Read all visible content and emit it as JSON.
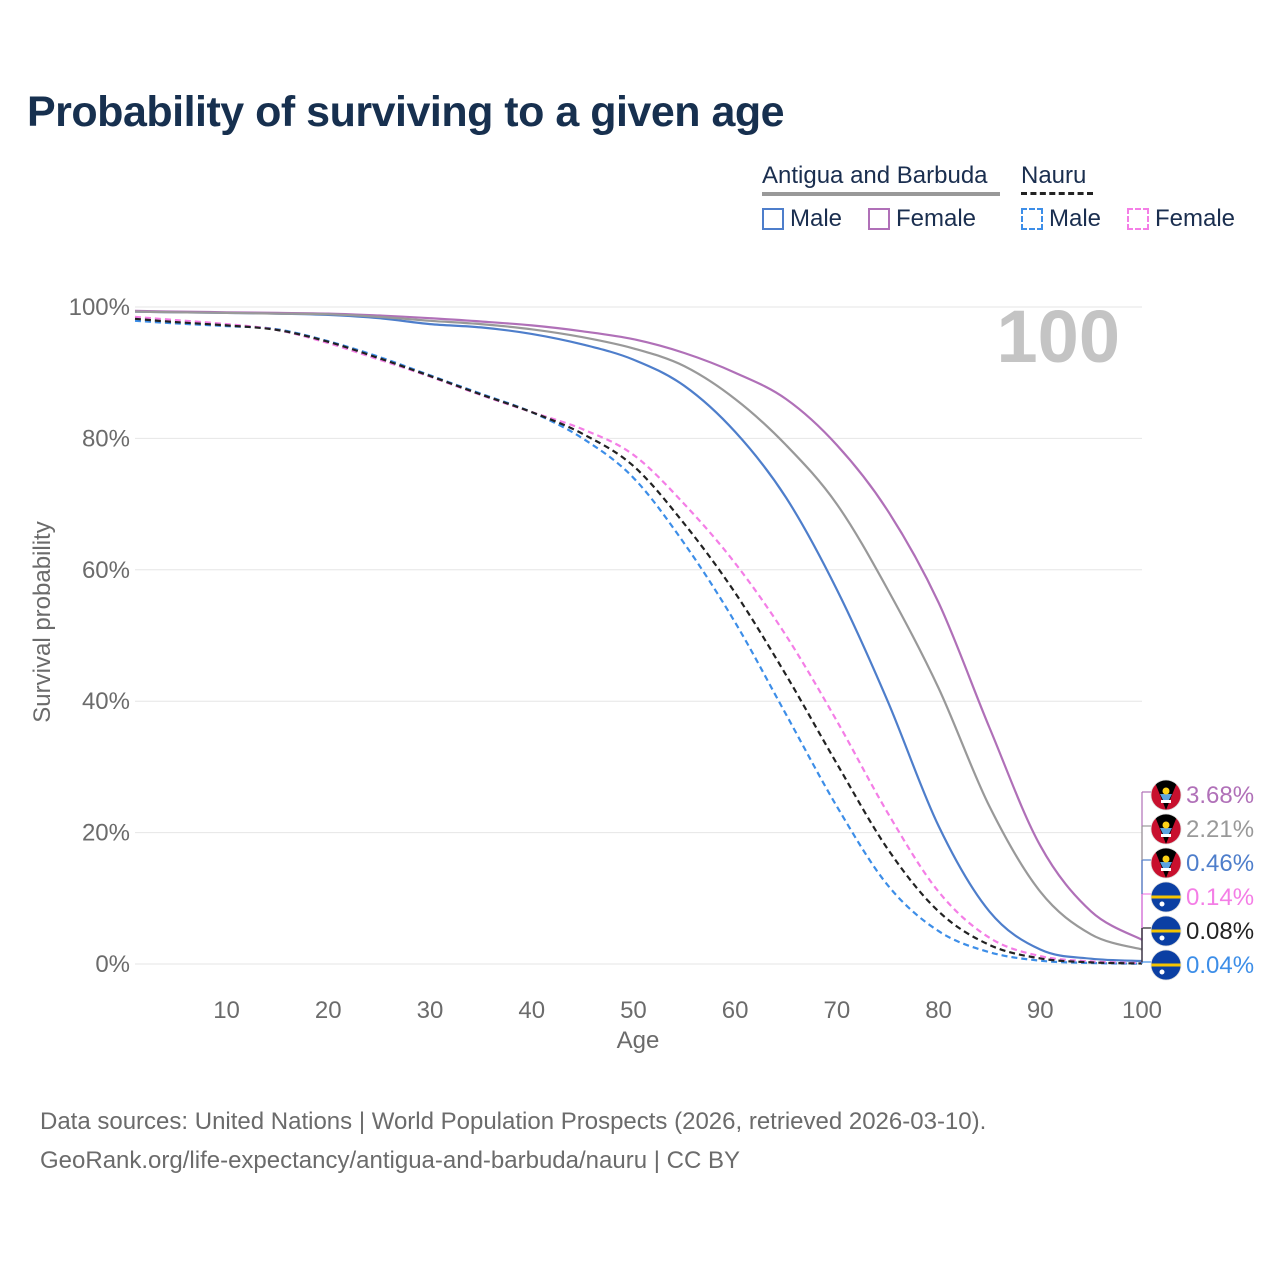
{
  "title": "Probability of surviving to a given age",
  "legend": {
    "country1": "Antigua and Barbuda",
    "country2": "Nauru",
    "items": [
      {
        "label": "Male",
        "color": "#4e7ecb",
        "dash": false
      },
      {
        "label": "Female",
        "color": "#b070b8",
        "dash": false
      },
      {
        "label": "Male",
        "color": "#3d8ee8",
        "dash": true
      },
      {
        "label": "Female",
        "color": "#f47ee6",
        "dash": true
      }
    ]
  },
  "year_label": "100",
  "source": {
    "line1": "Data sources: United Nations | World Population Prospects (2026, retrieved 2026-03-10).",
    "line2": "GeoRank.org/life-expectancy/antigua-and-barbuda/nauru | CC BY"
  },
  "chart_data": {
    "type": "line",
    "title": "Probability of surviving to a given age",
    "xlabel": "Age",
    "ylabel": "Survival probability",
    "xlim": [
      1,
      100
    ],
    "ylim": [
      0,
      100
    ],
    "xticks": [
      10,
      20,
      30,
      40,
      50,
      60,
      70,
      80,
      90,
      100
    ],
    "yticks": [
      {
        "value": 0,
        "label": "0%"
      },
      {
        "value": 20,
        "label": "20%"
      },
      {
        "value": 40,
        "label": "40%"
      },
      {
        "value": 60,
        "label": "60%"
      },
      {
        "value": 80,
        "label": "80%"
      },
      {
        "value": 100,
        "label": "100%"
      }
    ],
    "x": [
      1,
      5,
      10,
      15,
      20,
      25,
      30,
      35,
      40,
      45,
      50,
      55,
      60,
      65,
      70,
      75,
      80,
      85,
      90,
      95,
      100
    ],
    "series": [
      {
        "name": "Antigua and Barbuda Male",
        "color": "#4e7ecb",
        "dash": false,
        "values": [
          99.3,
          99.2,
          99.1,
          99.0,
          98.8,
          98.3,
          97.4,
          96.9,
          95.9,
          94.3,
          92.0,
          88.0,
          81.0,
          71.0,
          57.0,
          40.0,
          21.0,
          8.0,
          2.2,
          0.8,
          0.46
        ],
        "end_label": "0.46%"
      },
      {
        "name": "Antigua and Barbuda Female",
        "color": "#b070b8",
        "dash": false,
        "values": [
          99.4,
          99.3,
          99.2,
          99.1,
          99.0,
          98.7,
          98.3,
          97.8,
          97.2,
          96.3,
          95.1,
          93.0,
          90.0,
          86.0,
          79.0,
          69.0,
          55.0,
          36.0,
          18.0,
          8.0,
          3.68
        ],
        "end_label": "3.68%"
      },
      {
        "name": "Antigua and Barbuda",
        "color": "#999999",
        "dash": false,
        "values": [
          99.3,
          99.2,
          99.1,
          99.0,
          98.9,
          98.5,
          97.9,
          97.4,
          96.6,
          95.4,
          93.7,
          91.0,
          86.0,
          79.0,
          70.0,
          57.0,
          42.0,
          24.0,
          11.0,
          4.5,
          2.21
        ],
        "end_label": "2.21%"
      },
      {
        "name": "Nauru Male",
        "color": "#3d8ee8",
        "dash": true,
        "values": [
          97.9,
          97.5,
          97.1,
          96.6,
          94.8,
          92.4,
          89.6,
          86.8,
          84.0,
          80.0,
          74.0,
          64.0,
          52.0,
          38.0,
          24.0,
          12.0,
          5.0,
          1.8,
          0.5,
          0.15,
          0.04
        ],
        "end_label": "0.04%"
      },
      {
        "name": "Nauru Female",
        "color": "#f47ee6",
        "dash": true,
        "values": [
          98.5,
          98.0,
          97.4,
          96.5,
          94.5,
          92.0,
          89.4,
          86.6,
          84.0,
          81.4,
          77.5,
          70.0,
          61.0,
          50.0,
          37.0,
          23.0,
          11.0,
          4.0,
          1.2,
          0.4,
          0.14
        ],
        "end_label": "0.14%"
      },
      {
        "name": "Nauru",
        "color": "#222222",
        "dash": true,
        "values": [
          98.2,
          97.7,
          97.2,
          96.5,
          94.7,
          92.2,
          89.5,
          86.7,
          84.0,
          80.7,
          75.8,
          67.0,
          56.5,
          44.0,
          30.5,
          17.5,
          8.0,
          2.9,
          0.85,
          0.25,
          0.08
        ],
        "end_label": "0.08%"
      }
    ],
    "end_labels_order": [
      {
        "label": "3.68%",
        "color": "#b070b8",
        "flag": "antigua-and-barbuda"
      },
      {
        "label": "2.21%",
        "color": "#999999",
        "flag": "antigua-and-barbuda"
      },
      {
        "label": "0.46%",
        "color": "#4e7ecb",
        "flag": "antigua-and-barbuda"
      },
      {
        "label": "0.14%",
        "color": "#f47ee6",
        "flag": "nauru"
      },
      {
        "label": "0.08%",
        "color": "#222222",
        "flag": "nauru"
      },
      {
        "label": "0.04%",
        "color": "#3d8ee8",
        "flag": "nauru"
      }
    ]
  }
}
